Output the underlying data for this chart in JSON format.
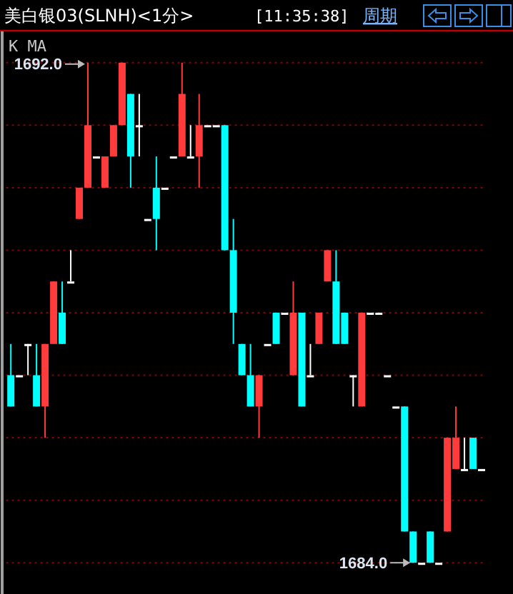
{
  "chart_data": {
    "type": "candlestick",
    "title": "美白银03(SLNH)<1分>",
    "annotations": [
      "[11:35:38]",
      "周期",
      "K MA",
      "1692.0",
      "1684.0"
    ],
    "categories": [
      null,
      null,
      null,
      null,
      null,
      null,
      null,
      null,
      null,
      null,
      null,
      null,
      null,
      null,
      null,
      null,
      null,
      null,
      null,
      null,
      null,
      null,
      null,
      null,
      null,
      null,
      null,
      null,
      null,
      null,
      null,
      null,
      null,
      null,
      null,
      null,
      null,
      null,
      null,
      null,
      null,
      null,
      null,
      null,
      null,
      null,
      null,
      null,
      null,
      null,
      null,
      null,
      null,
      null,
      null,
      null
    ],
    "ohlc": [
      [
        1687,
        1687.5,
        1686.5,
        1686.5
      ],
      [
        1687,
        1687,
        1687,
        1687
      ],
      [
        1687.5,
        1687.5,
        1687,
        1687.5
      ],
      [
        1687,
        1687.5,
        1686.5,
        1686.5
      ],
      [
        1686.5,
        1687.5,
        1686,
        1687.5
      ],
      [
        1687.5,
        1688.5,
        1687.5,
        1688.5
      ],
      [
        1688,
        1688.5,
        1687.5,
        1687.5
      ],
      [
        1688.5,
        1689,
        1688.5,
        1688.5
      ],
      [
        1689.5,
        1690,
        1689.5,
        1690
      ],
      [
        1690,
        1692,
        1690,
        1691
      ],
      [
        1690.5,
        1690.5,
        1690.5,
        1690.5
      ],
      [
        1690,
        1690.5,
        1690,
        1690.5
      ],
      [
        1690.5,
        1691,
        1690.5,
        1691
      ],
      [
        1691,
        1692,
        1691,
        1692
      ],
      [
        1691.5,
        1691.5,
        1690,
        1690.5
      ],
      [
        1691,
        1691.5,
        1690.5,
        1691
      ],
      [
        1689.5,
        1689.5,
        1689.5,
        1689.5
      ],
      [
        1690,
        1690.5,
        1689,
        1689.5
      ],
      [
        1690,
        1690,
        1690,
        1690
      ],
      [
        1690.5,
        1690.5,
        1690.5,
        1690.5
      ],
      [
        1690.5,
        1692,
        1690.5,
        1691.5
      ],
      [
        1690.5,
        1691,
        1690.5,
        1690.5
      ],
      [
        1690.5,
        1691.5,
        1690,
        1691
      ],
      [
        1691,
        1691,
        1691,
        1691
      ],
      [
        1691,
        1691,
        1691,
        1691
      ],
      [
        1691,
        1691,
        1689,
        1689
      ],
      [
        1689,
        1689.5,
        1687.5,
        1688
      ],
      [
        1687.5,
        1687.5,
        1687,
        1687
      ],
      [
        1687,
        1687.5,
        1686.5,
        1686.5
      ],
      [
        1686.5,
        1687,
        1686,
        1687
      ],
      [
        1687.5,
        1687.5,
        1687.5,
        1687.5
      ],
      [
        1688,
        1688,
        1687.5,
        1687.5
      ],
      [
        1688,
        1688,
        1688,
        1688
      ],
      [
        1687,
        1688.5,
        1687,
        1688
      ],
      [
        1688,
        1688,
        1686.5,
        1686.5
      ],
      [
        1687,
        1687.5,
        1687,
        1687
      ],
      [
        1687.5,
        1688,
        1687.5,
        1688
      ],
      [
        1688.5,
        1689,
        1688.5,
        1689
      ],
      [
        1688.5,
        1689,
        1687.5,
        1687.5
      ],
      [
        1688,
        1688,
        1687.5,
        1687.5
      ],
      [
        1687,
        1687,
        1686.5,
        1687
      ],
      [
        1686.5,
        1688,
        1686.5,
        1688
      ],
      [
        1688,
        1688,
        1688,
        1688
      ],
      [
        1688,
        1688,
        1688,
        1688
      ],
      [
        1687,
        1687,
        1687,
        1687
      ],
      [
        1686.5,
        1686.5,
        1686.5,
        1686.5
      ],
      [
        1686.5,
        1686.5,
        1684.5,
        1684.5
      ],
      [
        1684.5,
        1684.5,
        1684,
        1684
      ],
      [
        1684,
        1684,
        1684,
        1684
      ],
      [
        1684.5,
        1684.5,
        1684,
        1684
      ],
      [
        1684,
        1684,
        1684,
        1684
      ],
      [
        1684.5,
        1686,
        1684.5,
        1686
      ],
      [
        1685.5,
        1686.5,
        1685.5,
        1686
      ],
      [
        1685.5,
        1686,
        1685.5,
        1685.5
      ],
      [
        1686,
        1686,
        1685.5,
        1685.5
      ],
      [
        1685.5,
        1685.5,
        1685.5,
        1685.5
      ]
    ],
    "colors": [
      "#00ffff",
      "#ffffff",
      "#ffffff",
      "#00ffff",
      "#ff3b3b",
      "#ff3b3b",
      "#00ffff",
      "#ffffff",
      "#ff3b3b",
      "#ff3b3b",
      "#ffffff",
      "#ff3b3b",
      "#ff3b3b",
      "#ff3b3b",
      "#00ffff",
      "#ffffff",
      "#ffffff",
      "#00ffff",
      "#ffffff",
      "#ffffff",
      "#ff3b3b",
      "#ffffff",
      "#ff3b3b",
      "#ffffff",
      "#ffffff",
      "#00ffff",
      "#00ffff",
      "#00ffff",
      "#00ffff",
      "#ff3b3b",
      "#ffffff",
      "#00ffff",
      "#ffffff",
      "#ff3b3b",
      "#00ffff",
      "#ffffff",
      "#ff3b3b",
      "#ff3b3b",
      "#00ffff",
      "#00ffff",
      "#ffffff",
      "#ff3b3b",
      "#ffffff",
      "#ffffff",
      "#ffffff",
      "#ffffff",
      "#00ffff",
      "#00ffff",
      "#ffffff",
      "#00ffff",
      "#ffffff",
      "#ff3b3b",
      "#ff3b3b",
      "#ffffff",
      "#00ffff",
      "#ffffff"
    ],
    "ylim": [
      1683.5,
      1692.5
    ],
    "yticks": [
      {
        "value": 1684,
        "label": null
      },
      {
        "value": 1685,
        "label": null
      },
      {
        "value": 1686,
        "label": null
      },
      {
        "value": 1687,
        "label": null
      },
      {
        "value": 1688,
        "label": null
      },
      {
        "value": 1689,
        "label": null
      },
      {
        "value": 1690,
        "label": null
      },
      {
        "value": 1691,
        "label": null
      },
      {
        "value": 1692,
        "label": null
      }
    ],
    "grid": "y"
  }
}
